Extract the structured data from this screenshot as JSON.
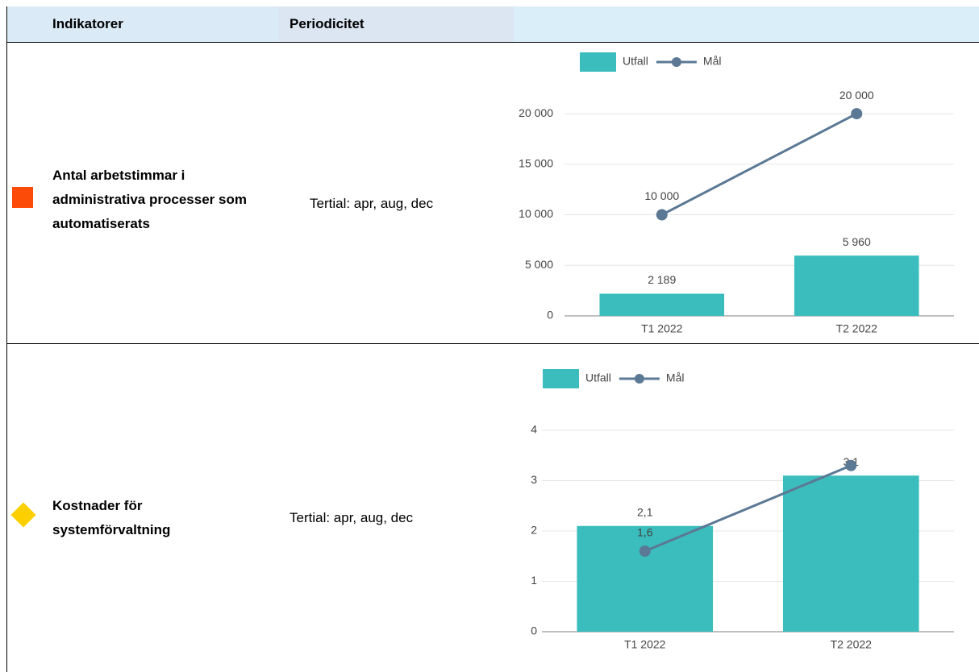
{
  "table": {
    "headers": [
      "Indikatorer",
      "Periodicitet"
    ],
    "rows": [
      {
        "indicator": "Antal arbetstimmar i administrativa processer som automatiserats",
        "period": "Tertial: apr, aug, dec",
        "chart": {
          "type": "bar",
          "categories": [
            "T1 2022",
            "T2 2022"
          ],
          "series": [
            {
              "name": "Utfall",
              "type": "bar",
              "color": "#3bbdbd",
              "values": [
                2189,
                5960
              ],
              "value_labels": [
                "2 189",
                "5 960"
              ]
            },
            {
              "name": "Mål",
              "type": "line",
              "color": "#5b7894",
              "values": [
                10000,
                20000
              ],
              "value_labels": [
                "10 000",
                "20 000"
              ]
            }
          ],
          "ylim": [
            0,
            22000
          ],
          "yticks": [
            0,
            {
              "value": 5000,
              "label": "5 000"
            },
            {
              "value": 10000,
              "label": "10 000"
            },
            {
              "value": 15000,
              "label": "15 000"
            },
            {
              "value": 20000,
              "label": "20 000"
            }
          ],
          "grid": true
        }
      },
      {
        "indicator": "Kostnader för systemförvaltning",
        "period": "Tertial: apr, aug, dec",
        "chart": {
          "type": "bar",
          "categories": [
            "T1 2022",
            "T2 2022"
          ],
          "series": [
            {
              "name": "Utfall",
              "type": "bar",
              "color": "#3bbdbd",
              "values": [
                2.1,
                3.1
              ],
              "value_labels": [
                "2,1",
                "3,1"
              ]
            },
            {
              "name": "Mål",
              "type": "line",
              "color": "#5b7894",
              "values": [
                1.6,
                3.3
              ],
              "value_labels": [
                "1,6",
                null
              ]
            }
          ],
          "ylim": [
            0,
            4.4
          ],
          "yticks": [
            0,
            1,
            2,
            3,
            4
          ],
          "grid": true
        }
      }
    ]
  }
}
